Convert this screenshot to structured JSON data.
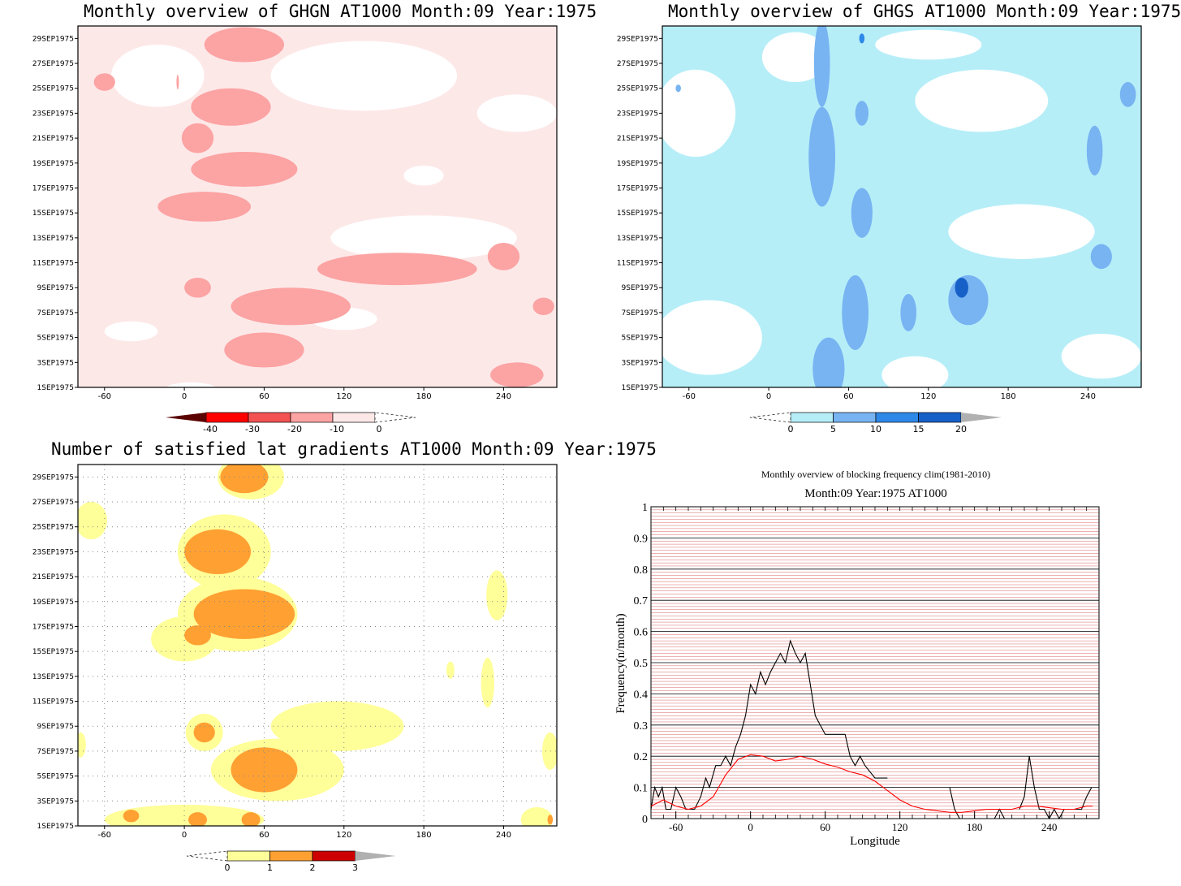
{
  "chart_data": [
    {
      "type": "heatmap",
      "title": "Monthly overview of GHGN AT1000 Month:09 Year:1975",
      "x_ticks": [
        -60,
        0,
        60,
        120,
        180,
        240
      ],
      "y_ticks": [
        "1SEP1975",
        "3SEP1975",
        "5SEP1975",
        "7SEP1975",
        "9SEP1975",
        "11SEP1975",
        "13SEP1975",
        "15SEP1975",
        "17SEP1975",
        "19SEP1975",
        "21SEP1975",
        "23SEP1975",
        "25SEP1975",
        "27SEP1975",
        "29SEP1975"
      ],
      "colorbar_ticks": [
        "-40",
        "-30",
        "-20",
        "-10",
        "0"
      ],
      "colors": [
        "#5a0000",
        "#ff0000",
        "#f35252",
        "#fca3a3",
        "#fde8e8",
        "#ffffff"
      ],
      "xlim": [
        -80,
        280
      ],
      "blobs": [
        {
          "lon": -5,
          "day": 25.5,
          "rx": 0.9,
          "ry": 0.6,
          "level": 2
        },
        {
          "lon": 45,
          "day": 28.5,
          "rx": 30,
          "ry": 1.4,
          "level": 2
        },
        {
          "lon": 35,
          "day": 23.5,
          "rx": 30,
          "ry": 1.5,
          "level": 2
        },
        {
          "lon": 10,
          "day": 21.0,
          "rx": 12,
          "ry": 1.2,
          "level": 2
        },
        {
          "lon": 45,
          "day": 18.5,
          "rx": 40,
          "ry": 1.4,
          "level": 2
        },
        {
          "lon": 15,
          "day": 15.5,
          "rx": 35,
          "ry": 1.2,
          "level": 2
        },
        {
          "lon": -60,
          "day": 25.5,
          "rx": 8,
          "ry": 0.7,
          "level": 2
        },
        {
          "lon": 10,
          "day": 9.0,
          "rx": 10,
          "ry": 0.8,
          "level": 2
        },
        {
          "lon": 160,
          "day": 10.5,
          "rx": 60,
          "ry": 1.3,
          "level": 2
        },
        {
          "lon": 80,
          "day": 7.5,
          "rx": 45,
          "ry": 1.5,
          "level": 2
        },
        {
          "lon": 60,
          "day": 4.0,
          "rx": 30,
          "ry": 1.4,
          "level": 2
        },
        {
          "lon": 250,
          "day": 2.0,
          "rx": 20,
          "ry": 1.0,
          "level": 2
        },
        {
          "lon": 270,
          "day": 7.5,
          "rx": 8,
          "ry": 0.7,
          "level": 2
        },
        {
          "lon": 240,
          "day": 11.5,
          "rx": 12,
          "ry": 1.1,
          "level": 2
        }
      ],
      "white_blobs": [
        {
          "lon": -20,
          "day": 26.0,
          "rx": 35,
          "ry": 2.5
        },
        {
          "lon": 135,
          "day": 26.0,
          "rx": 70,
          "ry": 2.8
        },
        {
          "lon": 180,
          "day": 13.0,
          "rx": 70,
          "ry": 1.8
        },
        {
          "lon": 120,
          "day": 6.5,
          "rx": 25,
          "ry": 0.9
        },
        {
          "lon": 180,
          "day": 18.0,
          "rx": 15,
          "ry": 0.8
        },
        {
          "lon": -40,
          "day": 5.5,
          "rx": 20,
          "ry": 0.8
        },
        {
          "lon": 250,
          "day": 23.0,
          "rx": 30,
          "ry": 1.5
        },
        {
          "lon": 5,
          "day": 0.8,
          "rx": 20,
          "ry": 0.6
        }
      ]
    },
    {
      "type": "heatmap",
      "title": "Monthly overview of GHGS AT1000 Month:09 Year:1975",
      "x_ticks": [
        -60,
        0,
        60,
        120,
        180,
        240
      ],
      "y_ticks": [
        "1SEP1975",
        "3SEP1975",
        "5SEP1975",
        "7SEP1975",
        "9SEP1975",
        "11SEP1975",
        "13SEP1975",
        "15SEP1975",
        "17SEP1975",
        "19SEP1975",
        "21SEP1975",
        "23SEP1975",
        "25SEP1975",
        "27SEP1975",
        "29SEP1975"
      ],
      "colorbar_ticks": [
        "0",
        "5",
        "10",
        "15",
        "20"
      ],
      "colors": [
        "#ffffff",
        "#b6eef8",
        "#78b4f2",
        "#2e88e8",
        "#1760c8",
        "#b0b0b0"
      ],
      "xlim": [
        -80,
        280
      ],
      "base_level": 1,
      "white_blobs": [
        {
          "lon": -55,
          "day": 23.0,
          "rx": 30,
          "ry": 3.5
        },
        {
          "lon": 160,
          "day": 24.0,
          "rx": 50,
          "ry": 2.5
        },
        {
          "lon": 190,
          "day": 13.5,
          "rx": 55,
          "ry": 2.2
        },
        {
          "lon": -45,
          "day": 5.0,
          "rx": 40,
          "ry": 3.0
        },
        {
          "lon": 120,
          "day": 28.5,
          "rx": 40,
          "ry": 1.2
        },
        {
          "lon": 250,
          "day": 3.5,
          "rx": 30,
          "ry": 1.8
        },
        {
          "lon": 20,
          "day": 27.5,
          "rx": 25,
          "ry": 2.0
        },
        {
          "lon": 110,
          "day": 2.0,
          "rx": 25,
          "ry": 1.5
        }
      ],
      "blobs": [
        {
          "lon": 40,
          "day": 27.0,
          "rx": 6,
          "ry": 3.5,
          "level": 2
        },
        {
          "lon": 40,
          "day": 19.5,
          "rx": 10,
          "ry": 4.0,
          "level": 2
        },
        {
          "lon": 70,
          "day": 15.0,
          "rx": 8,
          "ry": 2.0,
          "level": 2
        },
        {
          "lon": 65,
          "day": 7.0,
          "rx": 10,
          "ry": 3.0,
          "level": 2
        },
        {
          "lon": 45,
          "day": 2.5,
          "rx": 12,
          "ry": 2.5,
          "level": 2
        },
        {
          "lon": 105,
          "day": 7.0,
          "rx": 6,
          "ry": 1.5,
          "level": 2
        },
        {
          "lon": 150,
          "day": 8.0,
          "rx": 15,
          "ry": 2.0,
          "level": 2
        },
        {
          "lon": 245,
          "day": 20.0,
          "rx": 6,
          "ry": 2.0,
          "level": 2
        },
        {
          "lon": 250,
          "day": 11.5,
          "rx": 8,
          "ry": 1.0,
          "level": 2
        },
        {
          "lon": 270,
          "day": 24.5,
          "rx": 6,
          "ry": 1.0,
          "level": 2
        },
        {
          "lon": 70,
          "day": 23.0,
          "rx": 5,
          "ry": 1.0,
          "level": 2
        },
        {
          "lon": 145,
          "day": 9.0,
          "rx": 5,
          "ry": 0.8,
          "level": 4
        },
        {
          "lon": 70,
          "day": 29.0,
          "rx": 2,
          "ry": 0.4,
          "level": 3
        },
        {
          "lon": -68,
          "day": 25.0,
          "rx": 2,
          "ry": 0.3,
          "level": 2
        }
      ]
    },
    {
      "type": "heatmap",
      "title": "Number of satisfied lat gradients AT1000 Month:09 Year:1975",
      "x_ticks": [
        -60,
        0,
        60,
        120,
        180,
        240
      ],
      "y_ticks": [
        "1SEP1975",
        "3SEP1975",
        "5SEP1975",
        "7SEP1975",
        "9SEP1975",
        "11SEP1975",
        "13SEP1975",
        "15SEP1975",
        "17SEP1975",
        "19SEP1975",
        "21SEP1975",
        "23SEP1975",
        "25SEP1975",
        "27SEP1975",
        "29SEP1975"
      ],
      "colorbar_ticks": [
        "0",
        "1",
        "2",
        "3"
      ],
      "colors": [
        "#ffffff",
        "#ffff99",
        "#ffa033",
        "#cc0000",
        "#b0b0b0"
      ],
      "xlim": [
        -80,
        280
      ],
      "blobs": [
        {
          "lon": 50,
          "day": 29.0,
          "rx": 25,
          "ry": 1.8,
          "level": 1
        },
        {
          "lon": -70,
          "day": 25.5,
          "rx": 12,
          "ry": 1.5,
          "level": 1
        },
        {
          "lon": 30,
          "day": 23.0,
          "rx": 35,
          "ry": 3.0,
          "level": 1
        },
        {
          "lon": 40,
          "day": 18.0,
          "rx": 45,
          "ry": 3.0,
          "level": 1
        },
        {
          "lon": 0,
          "day": 16.0,
          "rx": 25,
          "ry": 1.8,
          "level": 1
        },
        {
          "lon": 235,
          "day": 19.5,
          "rx": 8,
          "ry": 2.0,
          "level": 1
        },
        {
          "lon": 228,
          "day": 12.5,
          "rx": 5,
          "ry": 2.0,
          "level": 1
        },
        {
          "lon": 200,
          "day": 13.5,
          "rx": 3,
          "ry": 0.7,
          "level": 1
        },
        {
          "lon": 115,
          "day": 9.0,
          "rx": 50,
          "ry": 2.0,
          "level": 1
        },
        {
          "lon": 70,
          "day": 5.5,
          "rx": 50,
          "ry": 2.5,
          "level": 1
        },
        {
          "lon": 15,
          "day": 8.5,
          "rx": 14,
          "ry": 1.5,
          "level": 1
        },
        {
          "lon": 0,
          "day": 1.5,
          "rx": 60,
          "ry": 1.2,
          "level": 1
        },
        {
          "lon": 265,
          "day": 1.5,
          "rx": 12,
          "ry": 1.0,
          "level": 1
        },
        {
          "lon": 275,
          "day": 7.0,
          "rx": 6,
          "ry": 1.5,
          "level": 1
        },
        {
          "lon": -78,
          "day": 7.5,
          "rx": 4,
          "ry": 1.0,
          "level": 1
        },
        {
          "lon": 45,
          "day": 29.0,
          "rx": 18,
          "ry": 1.3,
          "level": 2
        },
        {
          "lon": 25,
          "day": 23.0,
          "rx": 25,
          "ry": 1.8,
          "level": 2
        },
        {
          "lon": 45,
          "day": 18.0,
          "rx": 38,
          "ry": 2.0,
          "level": 2
        },
        {
          "lon": 10,
          "day": 16.3,
          "rx": 10,
          "ry": 0.8,
          "level": 2
        },
        {
          "lon": 15,
          "day": 8.5,
          "rx": 8,
          "ry": 0.8,
          "level": 2
        },
        {
          "lon": 60,
          "day": 5.5,
          "rx": 25,
          "ry": 1.8,
          "level": 2
        },
        {
          "lon": -40,
          "day": 1.8,
          "rx": 6,
          "ry": 0.5,
          "level": 2
        },
        {
          "lon": 10,
          "day": 1.5,
          "rx": 7,
          "ry": 0.6,
          "level": 2
        },
        {
          "lon": 50,
          "day": 1.5,
          "rx": 7,
          "ry": 0.6,
          "level": 2
        },
        {
          "lon": 275,
          "day": 1.5,
          "rx": 2,
          "ry": 0.4,
          "level": 2
        }
      ]
    },
    {
      "type": "line",
      "title": "Monthly overview of blocking frequency clim(1981-2010)",
      "subtitle": "Month:09 Year:1975  AT1000",
      "xlabel": "Longitude",
      "ylabel": "Frequency(n/month)",
      "xlim": [
        -80,
        280
      ],
      "ylim": [
        0,
        1
      ],
      "x_ticks": [
        -60,
        0,
        60,
        120,
        180,
        240
      ],
      "y_ticks": [
        0,
        0.1,
        0.2,
        0.3,
        0.4,
        0.5,
        0.6,
        0.7,
        0.8,
        0.9,
        1
      ],
      "grid_color_minor": "#cc3333",
      "series": [
        {
          "color": "#000000",
          "points": [
            [
              -80,
              0.03
            ],
            [
              -77,
              0.1
            ],
            [
              -74,
              0.07
            ],
            [
              -71,
              0.1
            ],
            [
              -68,
              0.03
            ],
            [
              -64,
              0.03
            ],
            [
              -60,
              0.1
            ],
            [
              -56,
              0.07
            ],
            [
              -52,
              0.03
            ],
            [
              -45,
              0.03
            ],
            [
              -40,
              0.07
            ],
            [
              -36,
              0.13
            ],
            [
              -33,
              0.1
            ],
            [
              -28,
              0.17
            ],
            [
              -24,
              0.17
            ],
            [
              -20,
              0.2
            ],
            [
              -16,
              0.17
            ],
            [
              -12,
              0.23
            ],
            [
              -8,
              0.27
            ],
            [
              -4,
              0.33
            ],
            [
              0,
              0.43
            ],
            [
              4,
              0.4
            ],
            [
              8,
              0.47
            ],
            [
              12,
              0.43
            ],
            [
              16,
              0.47
            ],
            [
              20,
              0.5
            ],
            [
              24,
              0.53
            ],
            [
              28,
              0.5
            ],
            [
              32,
              0.57
            ],
            [
              36,
              0.53
            ],
            [
              40,
              0.5
            ],
            [
              44,
              0.53
            ],
            [
              48,
              0.43
            ],
            [
              52,
              0.33
            ],
            [
              56,
              0.3
            ],
            [
              60,
              0.27
            ],
            [
              68,
              0.27
            ],
            [
              76,
              0.27
            ],
            [
              80,
              0.2
            ],
            [
              84,
              0.17
            ],
            [
              88,
              0.2
            ],
            [
              92,
              0.17
            ],
            [
              100,
              0.13
            ],
            [
              110,
              0.13
            ]
          ]
        },
        {
          "color": "#000000",
          "points": [
            [
              160,
              0.1
            ],
            [
              164,
              0.03
            ],
            [
              168,
              0.0
            ]
          ]
        },
        {
          "color": "#000000",
          "points": [
            [
              196,
              0.0
            ],
            [
              200,
              0.03
            ],
            [
              204,
              0.0
            ]
          ]
        },
        {
          "color": "#000000",
          "points": [
            [
              216,
              0.03
            ],
            [
              220,
              0.07
            ],
            [
              224,
              0.2
            ],
            [
              228,
              0.1
            ],
            [
              232,
              0.03
            ],
            [
              236,
              0.03
            ],
            [
              240,
              0.0
            ],
            [
              244,
              0.03
            ],
            [
              248,
              0.0
            ],
            [
              252,
              0.03
            ],
            [
              262,
              0.03
            ],
            [
              266,
              0.03
            ],
            [
              270,
              0.07
            ],
            [
              274,
              0.1
            ]
          ]
        },
        {
          "color": "#ff0000",
          "points": [
            [
              -80,
              0.04
            ],
            [
              -70,
              0.06
            ],
            [
              -60,
              0.04
            ],
            [
              -50,
              0.03
            ],
            [
              -40,
              0.04
            ],
            [
              -30,
              0.07
            ],
            [
              -20,
              0.14
            ],
            [
              -10,
              0.19
            ],
            [
              0,
              0.205
            ],
            [
              10,
              0.2
            ],
            [
              20,
              0.185
            ],
            [
              30,
              0.19
            ],
            [
              40,
              0.2
            ],
            [
              50,
              0.19
            ],
            [
              60,
              0.175
            ],
            [
              70,
              0.165
            ],
            [
              80,
              0.15
            ],
            [
              90,
              0.14
            ],
            [
              100,
              0.12
            ],
            [
              110,
              0.09
            ],
            [
              120,
              0.06
            ],
            [
              130,
              0.04
            ],
            [
              140,
              0.03
            ],
            [
              150,
              0.025
            ],
            [
              160,
              0.02
            ],
            [
              170,
              0.02
            ],
            [
              180,
              0.025
            ],
            [
              190,
              0.03
            ],
            [
              200,
              0.03
            ],
            [
              210,
              0.03
            ],
            [
              220,
              0.04
            ],
            [
              230,
              0.04
            ],
            [
              240,
              0.035
            ],
            [
              250,
              0.03
            ],
            [
              260,
              0.03
            ],
            [
              270,
              0.04
            ],
            [
              275,
              0.04
            ]
          ]
        }
      ]
    }
  ]
}
